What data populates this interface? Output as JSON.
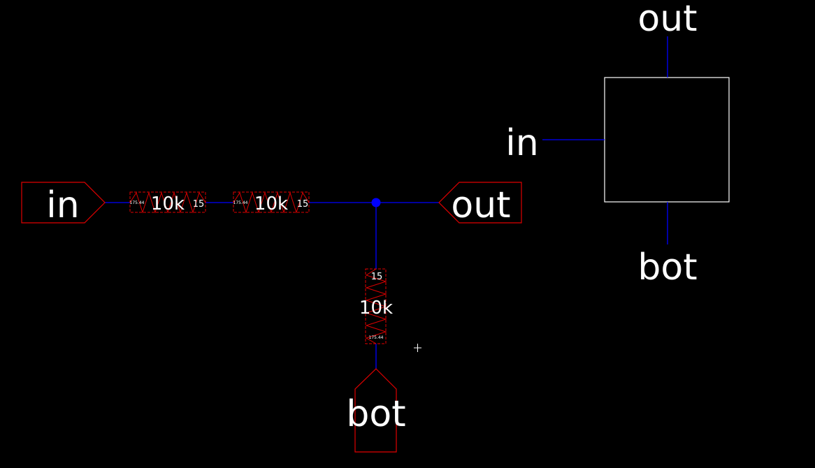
{
  "colors": {
    "background": "#000000",
    "wire": "#0000ff",
    "component": "#e00000",
    "symbol": "#ffffff",
    "text": "#ffffff"
  },
  "ports": {
    "in": "in",
    "out": "out",
    "bot": "bot"
  },
  "resistors": [
    {
      "value": "10k",
      "id": "15",
      "param": "175.44"
    },
    {
      "value": "10k",
      "id": "15",
      "param": "175.44"
    },
    {
      "value": "10k",
      "id": "15",
      "param": "175.44"
    }
  ],
  "symbol": {
    "pin_top": "out",
    "pin_left": "in",
    "pin_bottom": "bot"
  }
}
